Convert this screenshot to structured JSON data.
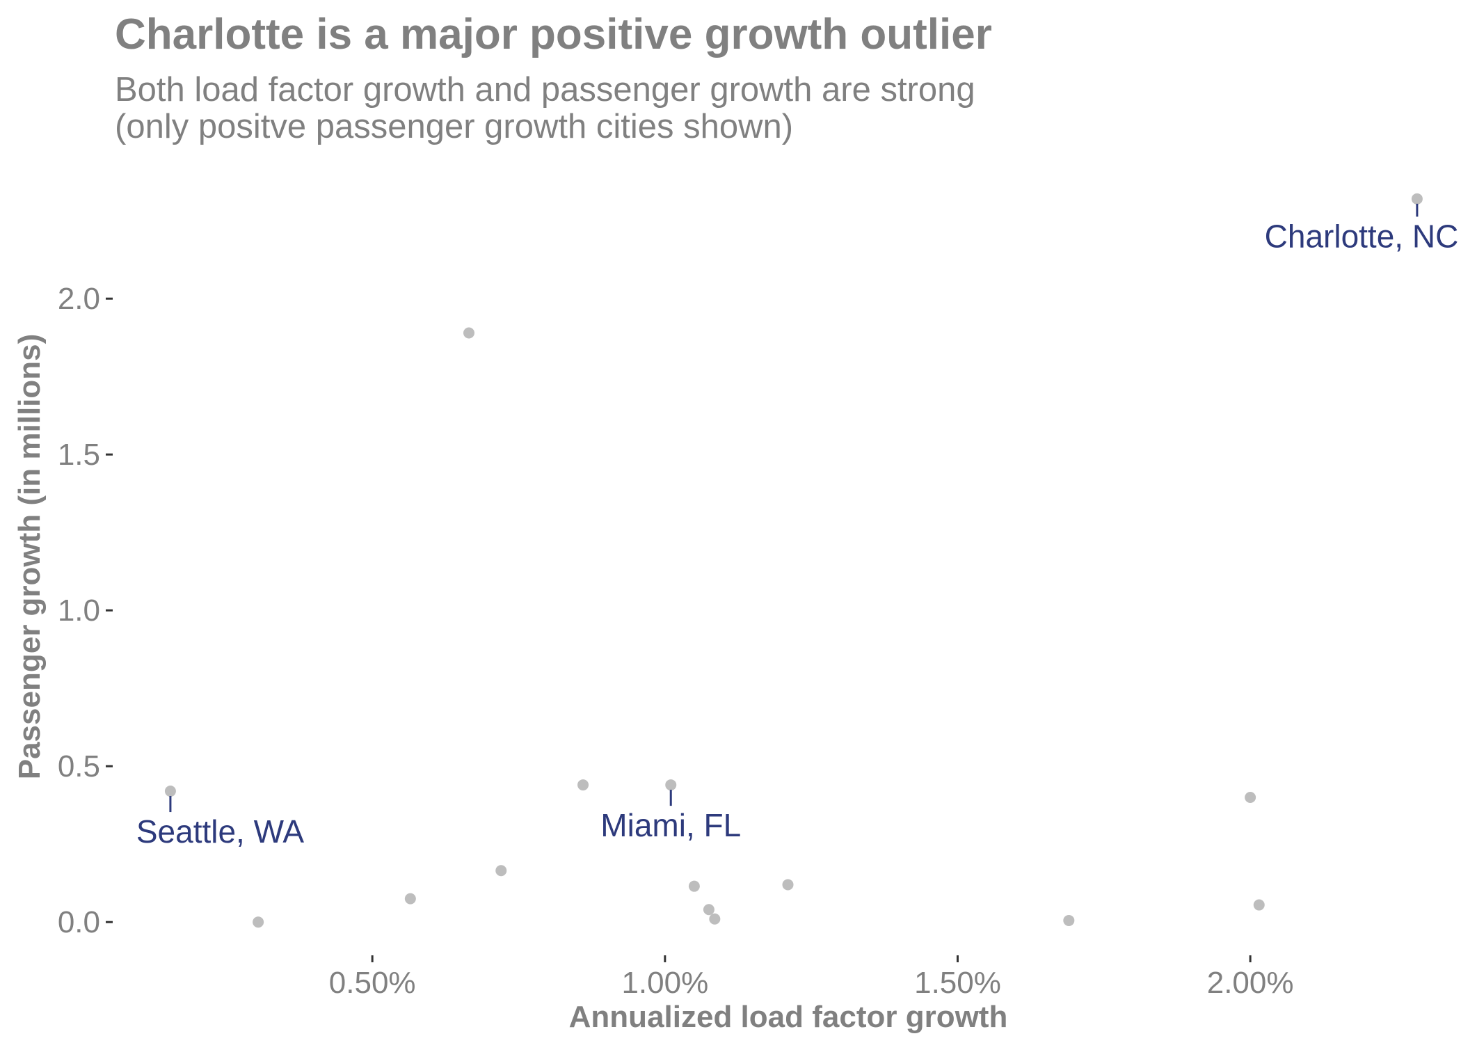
{
  "chart_data": {
    "type": "scatter",
    "title": "Charlotte is a major positive growth outlier",
    "subtitle_lines": [
      "Both load factor growth and passenger growth are strong",
      "(only positve passenger growth cities shown)"
    ],
    "xlabel": "Annualized load factor growth",
    "ylabel": "Passenger growth (in millions)",
    "xlim": [
      0.0006,
      0.0236
    ],
    "ylim": [
      -0.1,
      2.4
    ],
    "x_ticks": [
      0.005,
      0.01,
      0.015,
      0.02
    ],
    "x_tick_labels": [
      "0.50%",
      "1.00%",
      "1.50%",
      "2.00%"
    ],
    "y_ticks": [
      0.0,
      0.5,
      1.0,
      1.5,
      2.0
    ],
    "y_tick_labels": [
      "0.0",
      "0.5",
      "1.0",
      "1.5",
      "2.0"
    ],
    "grid": false,
    "point_color": "#bdbdbd",
    "annotation_color": "#2d3a7c",
    "text_color": "#808080",
    "points": [
      {
        "x": 0.02285,
        "y": 2.32
      },
      {
        "x": 0.00665,
        "y": 1.89
      },
      {
        "x": 0.00155,
        "y": 0.42
      },
      {
        "x": 0.0086,
        "y": 0.44
      },
      {
        "x": 0.0101,
        "y": 0.44
      },
      {
        "x": 0.02,
        "y": 0.4
      },
      {
        "x": 0.00305,
        "y": 0.0
      },
      {
        "x": 0.00565,
        "y": 0.075
      },
      {
        "x": 0.0072,
        "y": 0.165
      },
      {
        "x": 0.0105,
        "y": 0.115
      },
      {
        "x": 0.01075,
        "y": 0.04
      },
      {
        "x": 0.01085,
        "y": 0.01
      },
      {
        "x": 0.0121,
        "y": 0.12
      },
      {
        "x": 0.0169,
        "y": 0.005
      },
      {
        "x": 0.02015,
        "y": 0.055
      }
    ],
    "annotations": [
      {
        "label": "Charlotte, NC",
        "x": 0.02285,
        "y": 2.32,
        "label_x": 0.0219,
        "label_y": 2.165,
        "anchor": "middle"
      },
      {
        "label": "Seattle, WA",
        "x": 0.00155,
        "y": 0.42,
        "label_x": 0.0024,
        "label_y": 0.255,
        "anchor": "middle"
      },
      {
        "label": "Miami, FL",
        "x": 0.0101,
        "y": 0.44,
        "label_x": 0.0101,
        "label_y": 0.275,
        "anchor": "middle"
      }
    ]
  }
}
